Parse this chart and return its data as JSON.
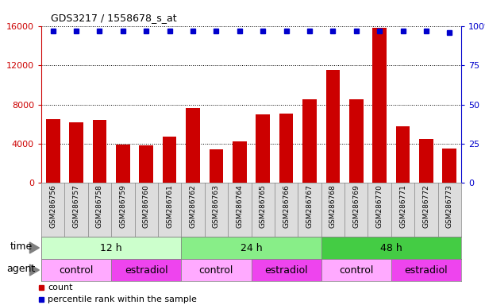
{
  "title": "GDS3217 / 1558678_s_at",
  "samples": [
    "GSM286756",
    "GSM286757",
    "GSM286758",
    "GSM286759",
    "GSM286760",
    "GSM286761",
    "GSM286762",
    "GSM286763",
    "GSM286764",
    "GSM286765",
    "GSM286766",
    "GSM286767",
    "GSM286768",
    "GSM286769",
    "GSM286770",
    "GSM286771",
    "GSM286772",
    "GSM286773"
  ],
  "counts": [
    6500,
    6200,
    6400,
    3900,
    3800,
    4700,
    7600,
    3400,
    4200,
    7000,
    7100,
    8500,
    11500,
    8500,
    15800,
    5800,
    4500,
    3500
  ],
  "percentile": [
    97,
    97,
    97,
    97,
    97,
    97,
    97,
    97,
    97,
    97,
    97,
    97,
    97,
    97,
    97,
    97,
    97,
    96
  ],
  "bar_color": "#CC0000",
  "dot_color": "#0000CC",
  "ylim_left": [
    0,
    16000
  ],
  "ylim_right": [
    0,
    100
  ],
  "yticks_left": [
    0,
    4000,
    8000,
    12000,
    16000
  ],
  "yticks_right": [
    0,
    25,
    50,
    75,
    100
  ],
  "time_groups": [
    {
      "label": "12 h",
      "start": 0,
      "end": 6,
      "color": "#ccffcc"
    },
    {
      "label": "24 h",
      "start": 6,
      "end": 12,
      "color": "#88ee88"
    },
    {
      "label": "48 h",
      "start": 12,
      "end": 18,
      "color": "#44cc44"
    }
  ],
  "agent_groups": [
    {
      "label": "control",
      "start": 0,
      "end": 3,
      "color": "#ffaaff"
    },
    {
      "label": "estradiol",
      "start": 3,
      "end": 6,
      "color": "#ee44ee"
    },
    {
      "label": "control",
      "start": 6,
      "end": 9,
      "color": "#ffaaff"
    },
    {
      "label": "estradiol",
      "start": 9,
      "end": 12,
      "color": "#ee44ee"
    },
    {
      "label": "control",
      "start": 12,
      "end": 15,
      "color": "#ffaaff"
    },
    {
      "label": "estradiol",
      "start": 15,
      "end": 18,
      "color": "#ee44ee"
    }
  ],
  "time_label": "time",
  "agent_label": "agent",
  "legend_count": "count",
  "legend_percentile": "percentile rank within the sample",
  "bg_color": "#ffffff",
  "tick_label_bg": "#dddddd"
}
